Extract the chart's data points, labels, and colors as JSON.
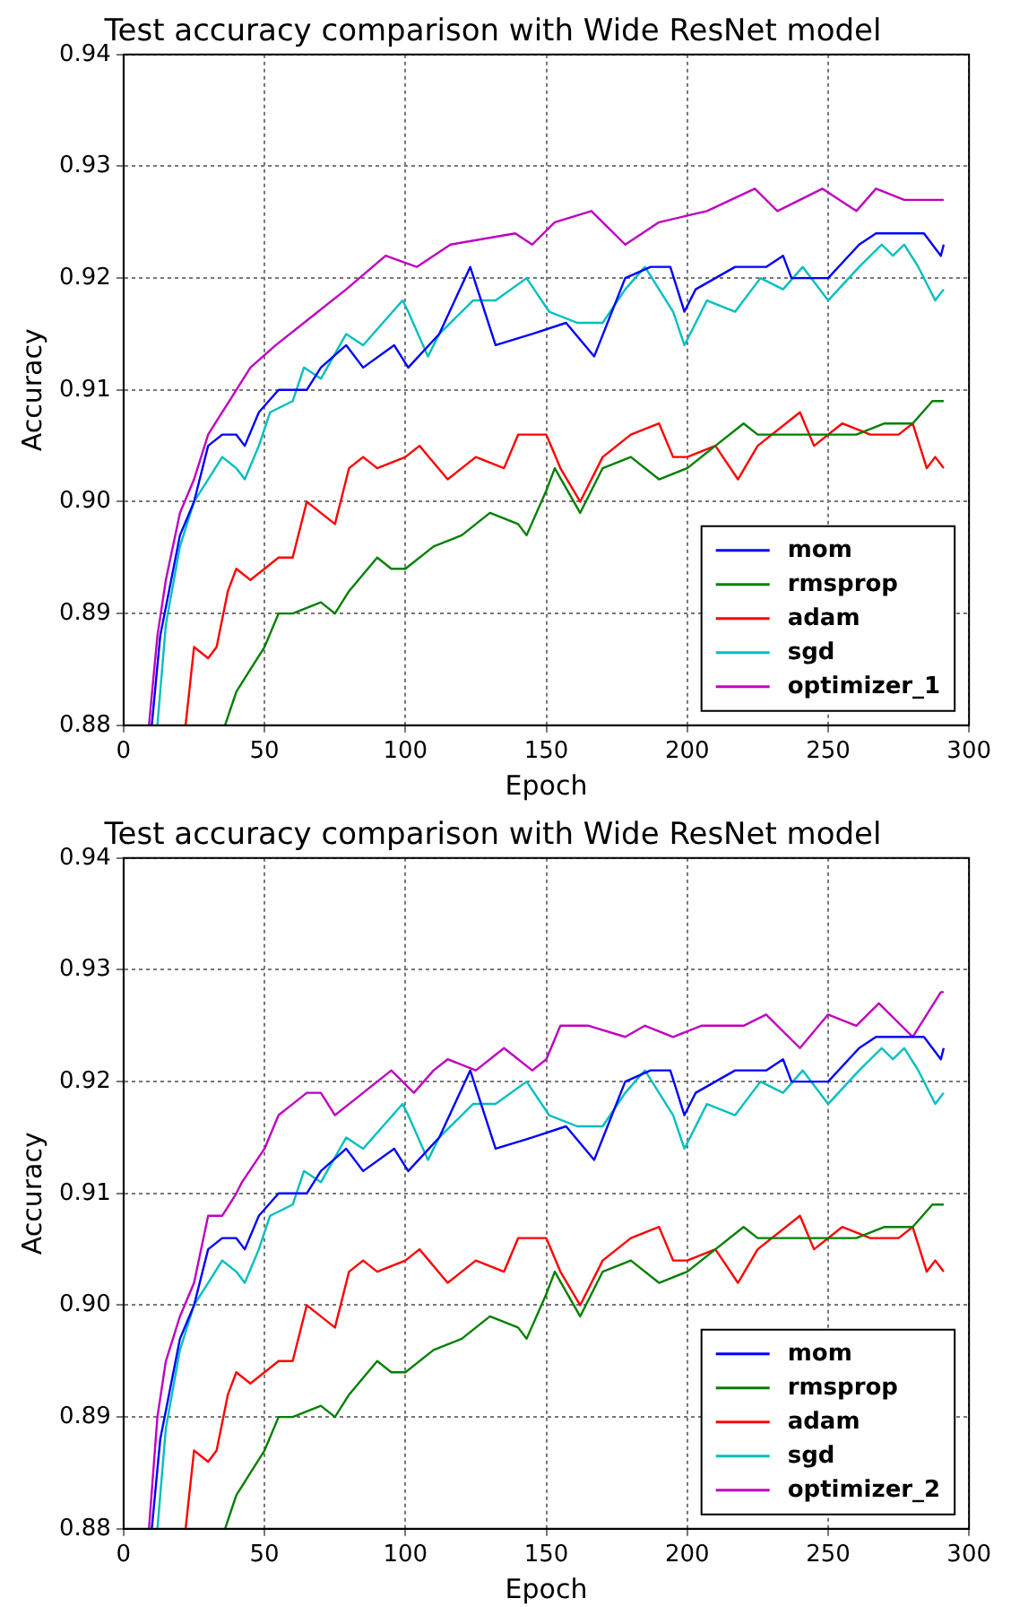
{
  "chart_data": [
    {
      "type": "line",
      "title": "Test accuracy comparison with Wide ResNet model",
      "xlabel": "Epoch",
      "ylabel": "Accuracy",
      "xlim": [
        0,
        300
      ],
      "xticks": [
        0,
        50,
        100,
        150,
        200,
        250,
        300
      ],
      "ylim": [
        0.88,
        0.94
      ],
      "yticks": [
        0.88,
        0.89,
        {
          "value": 0.9,
          "label": "0.90"
        },
        0.91,
        0.92,
        0.93,
        0.94
      ],
      "grid": true,
      "legend": "bottom right",
      "marker": "none",
      "line_style": "solid",
      "series": [
        {
          "name": "mom",
          "color": "#0000ff",
          "x": [
            10,
            13,
            20,
            25,
            30,
            35,
            40,
            43,
            48,
            55,
            65,
            70,
            79,
            85,
            96,
            101,
            112,
            123,
            132,
            145,
            157,
            167,
            178,
            187,
            194,
            199,
            203,
            217,
            228,
            234,
            237,
            250,
            261,
            267,
            280,
            284,
            290,
            291
          ],
          "values": [
            0.88,
            0.888,
            0.897,
            0.9,
            0.905,
            0.906,
            0.906,
            0.905,
            0.908,
            0.91,
            0.91,
            0.912,
            0.914,
            0.912,
            0.914,
            0.912,
            0.915,
            0.921,
            0.914,
            0.915,
            0.916,
            0.913,
            0.92,
            0.921,
            0.921,
            0.917,
            0.919,
            0.921,
            0.921,
            0.922,
            0.92,
            0.92,
            0.923,
            0.924,
            0.924,
            0.924,
            0.922,
            0.923
          ]
        },
        {
          "name": "rmsprop",
          "color": "#008000",
          "x": [
            36,
            40,
            45,
            50,
            55,
            60,
            70,
            75,
            80,
            90,
            95,
            100,
            110,
            120,
            130,
            140,
            143,
            150,
            153,
            162,
            170,
            180,
            190,
            200,
            210,
            220,
            225,
            240,
            250,
            260,
            270,
            280,
            287,
            291
          ],
          "values": [
            0.88,
            0.883,
            0.885,
            0.887,
            0.89,
            0.89,
            0.891,
            0.89,
            0.892,
            0.895,
            0.894,
            0.894,
            0.896,
            0.897,
            0.899,
            0.898,
            0.897,
            0.901,
            0.903,
            0.899,
            0.903,
            0.904,
            0.902,
            0.903,
            0.905,
            0.907,
            0.906,
            0.906,
            0.906,
            0.906,
            0.907,
            0.907,
            0.909,
            0.909
          ]
        },
        {
          "name": "adam",
          "color": "#ff0000",
          "x": [
            22,
            25,
            30,
            33,
            37,
            40,
            45,
            50,
            55,
            60,
            65,
            70,
            75,
            80,
            85,
            90,
            100,
            105,
            115,
            125,
            135,
            140,
            150,
            155,
            162,
            170,
            180,
            190,
            195,
            200,
            210,
            218,
            225,
            240,
            245,
            255,
            265,
            275,
            280,
            285,
            288,
            291
          ],
          "values": [
            0.88,
            0.887,
            0.886,
            0.887,
            0.892,
            0.894,
            0.893,
            0.894,
            0.895,
            0.895,
            0.9,
            0.899,
            0.898,
            0.903,
            0.904,
            0.903,
            0.904,
            0.905,
            0.902,
            0.904,
            0.903,
            0.906,
            0.906,
            0.903,
            0.9,
            0.904,
            0.906,
            0.907,
            0.904,
            0.904,
            0.905,
            0.902,
            0.905,
            0.908,
            0.905,
            0.907,
            0.906,
            0.906,
            0.907,
            0.903,
            0.904,
            0.903
          ]
        },
        {
          "name": "sgd",
          "color": "#00bfbf",
          "x": [
            12,
            15,
            20,
            25,
            30,
            35,
            40,
            43,
            48,
            52,
            60,
            64,
            70,
            79,
            85,
            99,
            101,
            108,
            112,
            124,
            132,
            143,
            151,
            161,
            170,
            178,
            185,
            195,
            199,
            207,
            217,
            226,
            234,
            241,
            250,
            261,
            269,
            273,
            277,
            282,
            288,
            291
          ],
          "values": [
            0.88,
            0.889,
            0.896,
            0.9,
            0.902,
            0.904,
            0.903,
            0.902,
            0.905,
            0.908,
            0.909,
            0.912,
            0.911,
            0.915,
            0.914,
            0.918,
            0.917,
            0.913,
            0.915,
            0.918,
            0.918,
            0.92,
            0.917,
            0.916,
            0.916,
            0.919,
            0.921,
            0.917,
            0.914,
            0.918,
            0.917,
            0.92,
            0.919,
            0.921,
            0.918,
            0.921,
            0.923,
            0.922,
            0.923,
            0.921,
            0.918,
            0.919
          ]
        },
        {
          "name": "optimizer_1",
          "color": "#bf00bf",
          "x": [
            9,
            12,
            15,
            20,
            25,
            30,
            35,
            40,
            45,
            54,
            64,
            79,
            93,
            104,
            116,
            139,
            145,
            153,
            166,
            178,
            190,
            207,
            224,
            232,
            248,
            260,
            267,
            277,
            291
          ],
          "values": [
            0.88,
            0.888,
            0.893,
            0.899,
            0.902,
            0.906,
            0.908,
            0.91,
            0.912,
            0.914,
            0.916,
            0.919,
            0.922,
            0.921,
            0.923,
            0.924,
            0.923,
            0.925,
            0.926,
            0.923,
            0.925,
            0.926,
            0.928,
            0.926,
            0.928,
            0.926,
            0.928,
            0.927,
            0.927
          ]
        }
      ]
    },
    {
      "type": "line",
      "title": "Test accuracy comparison with Wide ResNet model",
      "xlabel": "Epoch",
      "ylabel": "Accuracy",
      "xlim": [
        0,
        300
      ],
      "xticks": [
        0,
        50,
        100,
        150,
        200,
        250,
        300
      ],
      "ylim": [
        0.88,
        0.94
      ],
      "yticks": [
        0.88,
        0.89,
        {
          "value": 0.9,
          "label": "0.90"
        },
        0.91,
        0.92,
        0.93,
        0.94
      ],
      "grid": true,
      "legend": "bottom right",
      "marker": "none",
      "line_style": "solid",
      "series": [
        {
          "name": "mom",
          "color": "#0000ff",
          "x": [
            10,
            13,
            20,
            25,
            30,
            35,
            40,
            43,
            48,
            55,
            65,
            70,
            79,
            85,
            96,
            101,
            112,
            123,
            132,
            145,
            157,
            167,
            178,
            187,
            194,
            199,
            203,
            217,
            228,
            234,
            237,
            250,
            261,
            267,
            280,
            284,
            290,
            291
          ],
          "values": [
            0.88,
            0.888,
            0.897,
            0.9,
            0.905,
            0.906,
            0.906,
            0.905,
            0.908,
            0.91,
            0.91,
            0.912,
            0.914,
            0.912,
            0.914,
            0.912,
            0.915,
            0.921,
            0.914,
            0.915,
            0.916,
            0.913,
            0.92,
            0.921,
            0.921,
            0.917,
            0.919,
            0.921,
            0.921,
            0.922,
            0.92,
            0.92,
            0.923,
            0.924,
            0.924,
            0.924,
            0.922,
            0.923
          ]
        },
        {
          "name": "rmsprop",
          "color": "#008000",
          "x": [
            36,
            40,
            45,
            50,
            55,
            60,
            70,
            75,
            80,
            90,
            95,
            100,
            110,
            120,
            130,
            140,
            143,
            150,
            153,
            162,
            170,
            180,
            190,
            200,
            210,
            220,
            225,
            240,
            250,
            260,
            270,
            280,
            287,
            291
          ],
          "values": [
            0.88,
            0.883,
            0.885,
            0.887,
            0.89,
            0.89,
            0.891,
            0.89,
            0.892,
            0.895,
            0.894,
            0.894,
            0.896,
            0.897,
            0.899,
            0.898,
            0.897,
            0.901,
            0.903,
            0.899,
            0.903,
            0.904,
            0.902,
            0.903,
            0.905,
            0.907,
            0.906,
            0.906,
            0.906,
            0.906,
            0.907,
            0.907,
            0.909,
            0.909
          ]
        },
        {
          "name": "adam",
          "color": "#ff0000",
          "x": [
            22,
            25,
            30,
            33,
            37,
            40,
            45,
            50,
            55,
            60,
            65,
            70,
            75,
            80,
            85,
            90,
            100,
            105,
            115,
            125,
            135,
            140,
            150,
            155,
            162,
            170,
            180,
            190,
            195,
            200,
            210,
            218,
            225,
            240,
            245,
            255,
            265,
            275,
            280,
            285,
            288,
            291
          ],
          "values": [
            0.88,
            0.887,
            0.886,
            0.887,
            0.892,
            0.894,
            0.893,
            0.894,
            0.895,
            0.895,
            0.9,
            0.899,
            0.898,
            0.903,
            0.904,
            0.903,
            0.904,
            0.905,
            0.902,
            0.904,
            0.903,
            0.906,
            0.906,
            0.903,
            0.9,
            0.904,
            0.906,
            0.907,
            0.904,
            0.904,
            0.905,
            0.902,
            0.905,
            0.908,
            0.905,
            0.907,
            0.906,
            0.906,
            0.907,
            0.903,
            0.904,
            0.903
          ]
        },
        {
          "name": "sgd",
          "color": "#00bfbf",
          "x": [
            12,
            15,
            20,
            25,
            30,
            35,
            40,
            43,
            48,
            52,
            60,
            64,
            70,
            79,
            85,
            99,
            101,
            108,
            112,
            124,
            132,
            143,
            151,
            161,
            170,
            178,
            185,
            195,
            199,
            207,
            217,
            226,
            234,
            241,
            250,
            261,
            269,
            273,
            277,
            282,
            288,
            291
          ],
          "values": [
            0.88,
            0.889,
            0.896,
            0.9,
            0.902,
            0.904,
            0.903,
            0.902,
            0.905,
            0.908,
            0.909,
            0.912,
            0.911,
            0.915,
            0.914,
            0.918,
            0.917,
            0.913,
            0.915,
            0.918,
            0.918,
            0.92,
            0.917,
            0.916,
            0.916,
            0.919,
            0.921,
            0.917,
            0.914,
            0.918,
            0.917,
            0.92,
            0.919,
            0.921,
            0.918,
            0.921,
            0.923,
            0.922,
            0.923,
            0.921,
            0.918,
            0.919
          ]
        },
        {
          "name": "optimizer_2",
          "color": "#bf00bf",
          "x": [
            9,
            12,
            15,
            20,
            25,
            30,
            35,
            40,
            42,
            50,
            55,
            60,
            65,
            70,
            75,
            80,
            90,
            95,
            103,
            110,
            115,
            125,
            135,
            145,
            150,
            155,
            165,
            178,
            185,
            195,
            205,
            220,
            228,
            240,
            250,
            260,
            268,
            280,
            290,
            291
          ],
          "values": [
            0.88,
            0.89,
            0.895,
            0.899,
            0.902,
            0.908,
            0.908,
            0.91,
            0.911,
            0.914,
            0.917,
            0.918,
            0.919,
            0.919,
            0.917,
            0.918,
            0.92,
            0.921,
            0.919,
            0.921,
            0.922,
            0.921,
            0.923,
            0.921,
            0.922,
            0.925,
            0.925,
            0.924,
            0.925,
            0.924,
            0.925,
            0.925,
            0.926,
            0.923,
            0.926,
            0.925,
            0.927,
            0.924,
            0.928,
            0.928
          ]
        }
      ]
    }
  ]
}
